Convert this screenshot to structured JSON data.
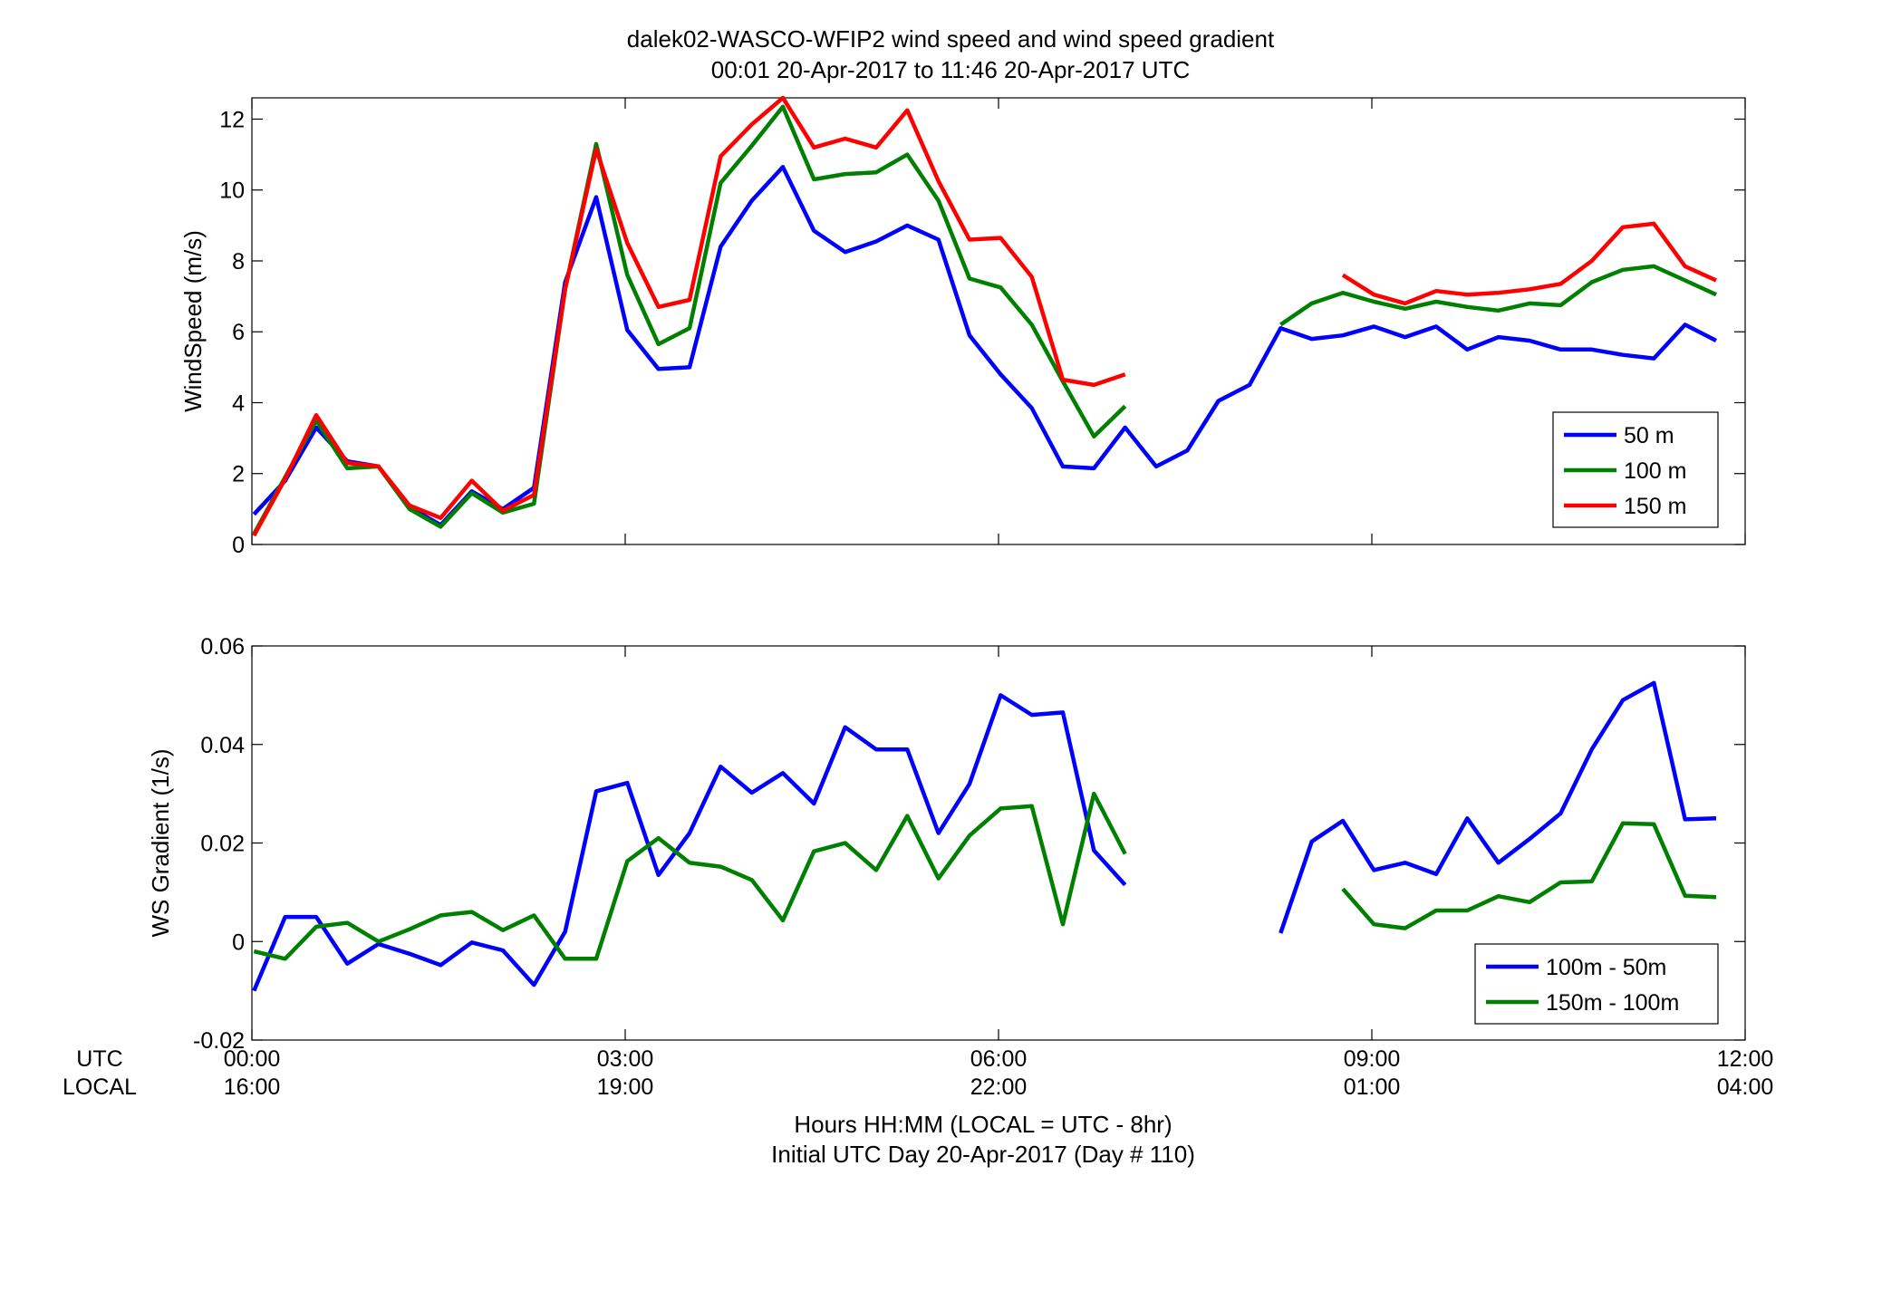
{
  "figure": {
    "title_line1": "dalek02-WASCO-WFIP2  wind speed and wind speed gradient",
    "title_line2": "00:01 20-Apr-2017 to 11:46 20-Apr-2017  UTC",
    "row_label_utc": "UTC",
    "row_label_local": "LOCAL",
    "x_ticks_utc": [
      "00:00",
      "03:00",
      "06:00",
      "09:00",
      "12:00"
    ],
    "x_ticks_local": [
      "16:00",
      "19:00",
      "22:00",
      "01:00",
      "04:00"
    ],
    "xlabel_line1": "Hours HH:MM  (LOCAL = UTC - 8hr)",
    "xlabel_line2": "Initial UTC Day 20-Apr-2017 (Day # 110)"
  },
  "chart_data": [
    {
      "type": "line",
      "ylabel": "WindSpeed (m/s)",
      "xlim": [
        0,
        12
      ],
      "ylim": [
        0,
        12.6
      ],
      "yticks": [
        0,
        2,
        4,
        6,
        8,
        10,
        12
      ],
      "x_tick_hours": [
        0,
        3,
        6,
        9,
        12
      ],
      "grid": false,
      "legend_position": "lower-right",
      "x_hours": [
        0.017,
        0.267,
        0.517,
        0.767,
        1.017,
        1.267,
        1.517,
        1.767,
        2.017,
        2.267,
        2.517,
        2.767,
        3.017,
        3.267,
        3.517,
        3.767,
        4.017,
        4.267,
        4.517,
        4.767,
        5.017,
        5.267,
        5.517,
        5.767,
        6.017,
        6.267,
        6.517,
        6.767,
        7.017,
        7.267,
        7.517,
        7.767,
        8.017,
        8.267,
        8.517,
        8.767,
        9.017,
        9.267,
        9.517,
        9.767,
        10.017,
        10.267,
        10.517,
        10.767,
        11.017,
        11.267,
        11.517,
        11.767
      ],
      "series": [
        {
          "name": "50 m",
          "color": "#0000ff",
          "values": [
            0.85,
            1.8,
            3.3,
            2.35,
            2.2,
            1.05,
            0.55,
            1.5,
            1.0,
            1.6,
            7.4,
            9.8,
            6.05,
            4.95,
            5.0,
            8.4,
            9.7,
            10.65,
            8.85,
            8.25,
            8.55,
            9.0,
            8.6,
            5.9,
            4.8,
            3.85,
            2.2,
            2.15,
            3.3,
            2.2,
            2.65,
            4.05,
            4.5,
            6.1,
            5.8,
            5.9,
            6.15,
            5.85,
            6.15,
            5.5,
            5.85,
            5.75,
            5.5,
            5.5,
            5.35,
            5.25,
            6.2,
            5.75
          ]
        },
        {
          "name": "100 m",
          "color": "#008000",
          "values": [
            0.3,
            1.9,
            3.5,
            2.15,
            2.2,
            1.0,
            0.5,
            1.45,
            0.9,
            1.15,
            7.2,
            11.3,
            7.6,
            5.65,
            6.1,
            10.2,
            11.25,
            12.35,
            10.3,
            10.45,
            10.5,
            11.0,
            9.7,
            7.5,
            7.25,
            6.2,
            4.6,
            3.05,
            3.9,
            null,
            null,
            null,
            null,
            6.2,
            6.8,
            7.1,
            6.85,
            6.65,
            6.85,
            6.7,
            6.6,
            6.8,
            6.75,
            7.4,
            7.75,
            7.85,
            7.45,
            7.05
          ]
        },
        {
          "name": "150 m",
          "color": "#ff0000",
          "values": [
            0.25,
            1.85,
            3.65,
            2.3,
            2.2,
            1.1,
            0.75,
            1.8,
            0.95,
            1.4,
            7.2,
            11.15,
            8.5,
            6.7,
            6.9,
            10.95,
            11.85,
            12.6,
            11.2,
            11.45,
            11.2,
            12.25,
            10.25,
            8.6,
            8.65,
            7.55,
            4.65,
            4.5,
            4.8,
            null,
            null,
            null,
            null,
            null,
            null,
            7.6,
            7.05,
            6.8,
            7.15,
            7.05,
            7.1,
            7.2,
            7.35,
            8.0,
            8.95,
            9.05,
            7.85,
            7.45
          ]
        }
      ]
    },
    {
      "type": "line",
      "ylabel": "WS Gradient (1/s)",
      "xlim": [
        0,
        12
      ],
      "ylim": [
        -0.02,
        0.06
      ],
      "yticks": [
        -0.02,
        0,
        0.02,
        0.04,
        0.06
      ],
      "ytick_labels": [
        "-0.02",
        "0",
        "0.02",
        "0.04",
        "0.06"
      ],
      "x_tick_hours": [
        0,
        3,
        6,
        9,
        12
      ],
      "grid": false,
      "legend_position": "lower-right",
      "x_hours": [
        0.017,
        0.267,
        0.517,
        0.767,
        1.017,
        1.267,
        1.517,
        1.767,
        2.017,
        2.267,
        2.517,
        2.767,
        3.017,
        3.267,
        3.517,
        3.767,
        4.017,
        4.267,
        4.517,
        4.767,
        5.017,
        5.267,
        5.517,
        5.767,
        6.017,
        6.267,
        6.517,
        6.767,
        7.017,
        7.267,
        7.517,
        7.767,
        8.017,
        8.267,
        8.517,
        8.767,
        9.017,
        9.267,
        9.517,
        9.767,
        10.017,
        10.267,
        10.517,
        10.767,
        11.017,
        11.267,
        11.517,
        11.767
      ],
      "series": [
        {
          "name": "100m - 50m",
          "color": "#0000ff",
          "values": [
            -0.01,
            0.005,
            0.005,
            -0.0045,
            -0.0005,
            -0.0025,
            -0.0048,
            -0.0002,
            -0.0018,
            -0.0088,
            0.002,
            0.0305,
            0.0322,
            0.0135,
            0.022,
            0.0355,
            0.0302,
            0.0342,
            0.028,
            0.0435,
            0.039,
            0.039,
            0.022,
            0.032,
            0.05,
            0.046,
            0.0465,
            0.0185,
            0.0115,
            null,
            null,
            null,
            null,
            0.0017,
            0.0203,
            0.0245,
            0.0145,
            0.016,
            0.0137,
            0.025,
            0.016,
            0.0208,
            0.026,
            0.039,
            0.049,
            0.0525,
            0.0248,
            0.025
          ]
        },
        {
          "name": "150m - 100m",
          "color": "#008000",
          "values": [
            -0.002,
            -0.0035,
            0.003,
            0.0038,
            0.0,
            0.0025,
            0.0053,
            0.006,
            0.0023,
            0.0053,
            -0.0035,
            -0.0035,
            0.0163,
            0.021,
            0.016,
            0.0152,
            0.0125,
            0.0043,
            0.0183,
            0.02,
            0.0145,
            0.0255,
            0.0128,
            0.0215,
            0.027,
            0.0275,
            0.0035,
            0.03,
            0.0178,
            null,
            null,
            null,
            null,
            null,
            null,
            0.0107,
            0.0035,
            0.0027,
            0.0063,
            0.0063,
            0.0092,
            0.008,
            0.012,
            0.0122,
            0.024,
            0.0238,
            0.0093,
            0.009
          ]
        }
      ]
    }
  ]
}
